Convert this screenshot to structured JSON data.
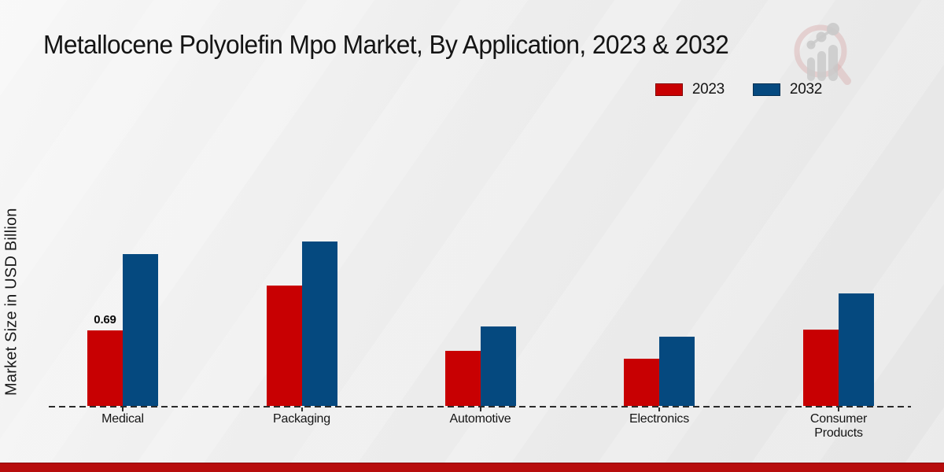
{
  "header": {
    "title": "Metallocene Polyolefin Mpo Market, By Application, 2023 & 2032"
  },
  "chart_data": {
    "type": "bar",
    "title": "Metallocene Polyolefin Mpo Market, By Application, 2023 & 2032",
    "categories": [
      "Medical",
      "Packaging",
      "Automotive",
      "Electronics",
      "Consumer Products"
    ],
    "series": [
      {
        "name": "2023",
        "color": "#c80002",
        "values": [
          0.69,
          1.1,
          0.5,
          0.43,
          0.7
        ]
      },
      {
        "name": "2032",
        "color": "#05497f",
        "values": [
          1.39,
          1.5,
          0.73,
          0.63,
          1.03
        ]
      }
    ],
    "data_labels": [
      {
        "series_index": 0,
        "category_index": 0,
        "text": "0.69"
      }
    ],
    "xlabel": "",
    "ylabel": "Market Size in USD Billion",
    "ylim": [
      0,
      1.6
    ],
    "grid": false,
    "baseline_style": "dashed",
    "legend_position": "top-right"
  },
  "footer": {
    "bar_color": "#b70d0d"
  },
  "watermark": {
    "name": "magnifier-bar-chart-logo",
    "glass_color": "#d6a7a7",
    "bars_color": "#c7c7c7"
  }
}
